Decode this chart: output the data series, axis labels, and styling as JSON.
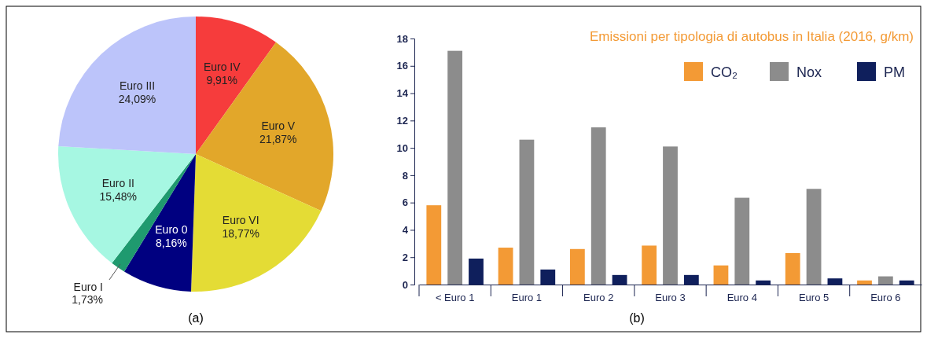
{
  "chart_data": [
    {
      "type": "pie",
      "categories": [
        "Euro IV",
        "Euro V",
        "Euro VI",
        "Euro 0",
        "Euro I",
        "Euro II",
        "Euro III"
      ],
      "values": [
        9.91,
        21.87,
        18.77,
        8.16,
        1.73,
        15.48,
        24.09
      ],
      "colors": [
        "#f63c3c",
        "#e2a72a",
        "#e4dc35",
        "#000080",
        "#1f9a6f",
        "#a6f7e2",
        "#bcc4fa"
      ],
      "value_labels": [
        "9,91%",
        "21,87%",
        "18,77%",
        "8,16%",
        "1,73%",
        "15,48%",
        "24,09%"
      ],
      "annotations": [
        "(a)"
      ]
    },
    {
      "type": "bar",
      "title": "Emissioni per tipologia di autobus in Italia (2016, g/km)",
      "categories": [
        "< Euro 1",
        "Euro 1",
        "Euro 2",
        "Euro 3",
        "Euro 4",
        "Euro 5",
        "Euro 6"
      ],
      "series": [
        {
          "name": "CO₂",
          "color": "#f39a35",
          "values": [
            5.8,
            2.7,
            2.6,
            2.85,
            1.4,
            2.3,
            0.3
          ]
        },
        {
          "name": "Nox",
          "color": "#8c8c8c",
          "values": [
            17.1,
            10.6,
            11.5,
            10.1,
            6.35,
            7.0,
            0.6
          ]
        },
        {
          "name": "PM",
          "color": "#0f1f5c",
          "values": [
            1.9,
            1.1,
            0.7,
            0.7,
            0.3,
            0.45,
            0.3
          ]
        }
      ],
      "ylim": [
        0,
        18
      ],
      "yticks": [
        0,
        2,
        4,
        6,
        8,
        10,
        12,
        14,
        16,
        18
      ],
      "grid": false,
      "legend": "top right",
      "annotations": [
        "(b)"
      ]
    }
  ]
}
